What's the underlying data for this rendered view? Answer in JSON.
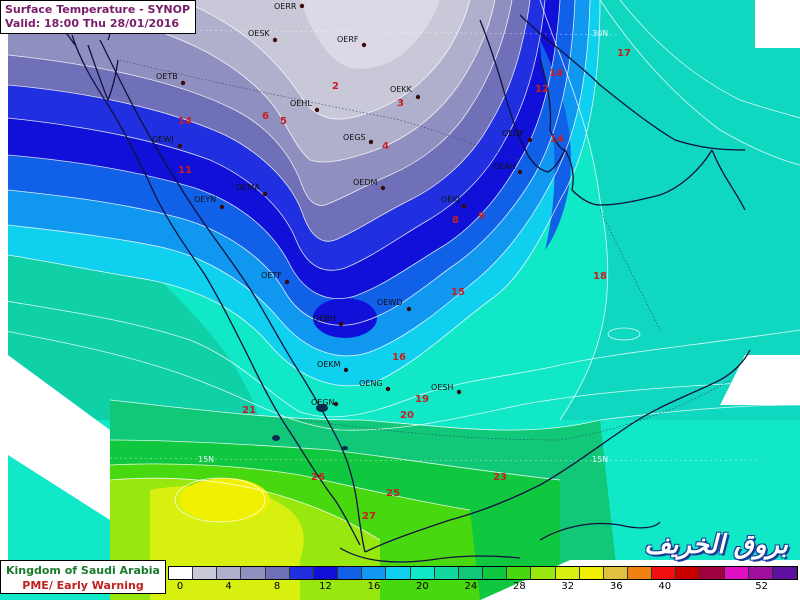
{
  "header": {
    "title": "Surface Temperature  - SYNOP",
    "valid": "Valid: 18:00 Thu 28/01/2016"
  },
  "footer": {
    "line1": "Kingdom of Saudi Arabia",
    "line2": "PME/ Early Warning"
  },
  "watermark": "بروق الخريف",
  "grid_labels": [
    "30N",
    "15N",
    "15N"
  ],
  "legend": {
    "colors": [
      "#ffffff",
      "#c8c8d8",
      "#b0b0cc",
      "#9090c0",
      "#7070b8",
      "#2030e0",
      "#1010d8",
      "#1060e8",
      "#1098f0",
      "#10d0f0",
      "#10e8c8",
      "#10d8a0",
      "#10c878",
      "#10c840",
      "#48d810",
      "#98e810",
      "#d8f010",
      "#f0f000",
      "#e0c040",
      "#f08010",
      "#f01010",
      "#c80000",
      "#a00040",
      "#e010c0",
      "#a010a0",
      "#6010a0"
    ],
    "labels": [
      "0",
      "4",
      "8",
      "12",
      "16",
      "20",
      "24",
      "28",
      "32",
      "36",
      "40",
      "52"
    ]
  },
  "stations": [
    {
      "id": "OERR",
      "label": "OERR"
    },
    {
      "id": "OESK",
      "label": "OESK"
    },
    {
      "id": "OERF",
      "label": "OERF"
    },
    {
      "id": "OETB",
      "label": "OETB"
    },
    {
      "id": "OEKK",
      "label": "OEKK"
    },
    {
      "id": "OEHL",
      "label": "OEHL"
    },
    {
      "id": "OEWJ",
      "label": "OEWJ"
    },
    {
      "id": "OEGS",
      "label": "OEGS"
    },
    {
      "id": "OEDF",
      "label": "OEDF"
    },
    {
      "id": "OEMA",
      "label": "OEMA"
    },
    {
      "id": "OEDM",
      "label": "OEDM"
    },
    {
      "id": "OEAH",
      "label": "OEAH"
    },
    {
      "id": "OEYN",
      "label": "OEYN"
    },
    {
      "id": "OEKJ",
      "label": "OEKJ"
    },
    {
      "id": "OETF",
      "label": "OETF"
    },
    {
      "id": "OEWD",
      "label": "OEWD"
    },
    {
      "id": "OEBH",
      "label": "OEBH"
    },
    {
      "id": "OEKM",
      "label": "OEKM"
    },
    {
      "id": "OENG",
      "label": "OENG"
    },
    {
      "id": "OESH",
      "label": "OESH"
    },
    {
      "id": "OEGN",
      "label": "OEGN"
    }
  ],
  "temperatures": [
    "2",
    "3",
    "4",
    "5",
    "6",
    "8",
    "9",
    "11",
    "12",
    "14",
    "14",
    "14",
    "15",
    "16",
    "17",
    "18",
    "19",
    "20",
    "21",
    "23",
    "25",
    "26",
    "27"
  ],
  "colors": {
    "title": "#7a1c6a",
    "footer_green": "#1a7a2a",
    "footer_red": "#c02020",
    "temp_text": "#c81e1e",
    "coast": "#101040"
  }
}
